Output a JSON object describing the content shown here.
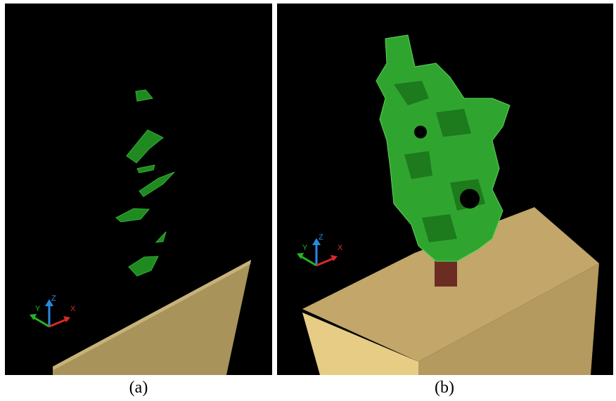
{
  "panels": [
    {
      "caption": "(a)",
      "axes": {
        "x": "X",
        "y": "Y",
        "z": "Z"
      }
    },
    {
      "caption": "(b)",
      "axes": {
        "x": "X",
        "y": "Y",
        "z": "Z"
      }
    }
  ]
}
